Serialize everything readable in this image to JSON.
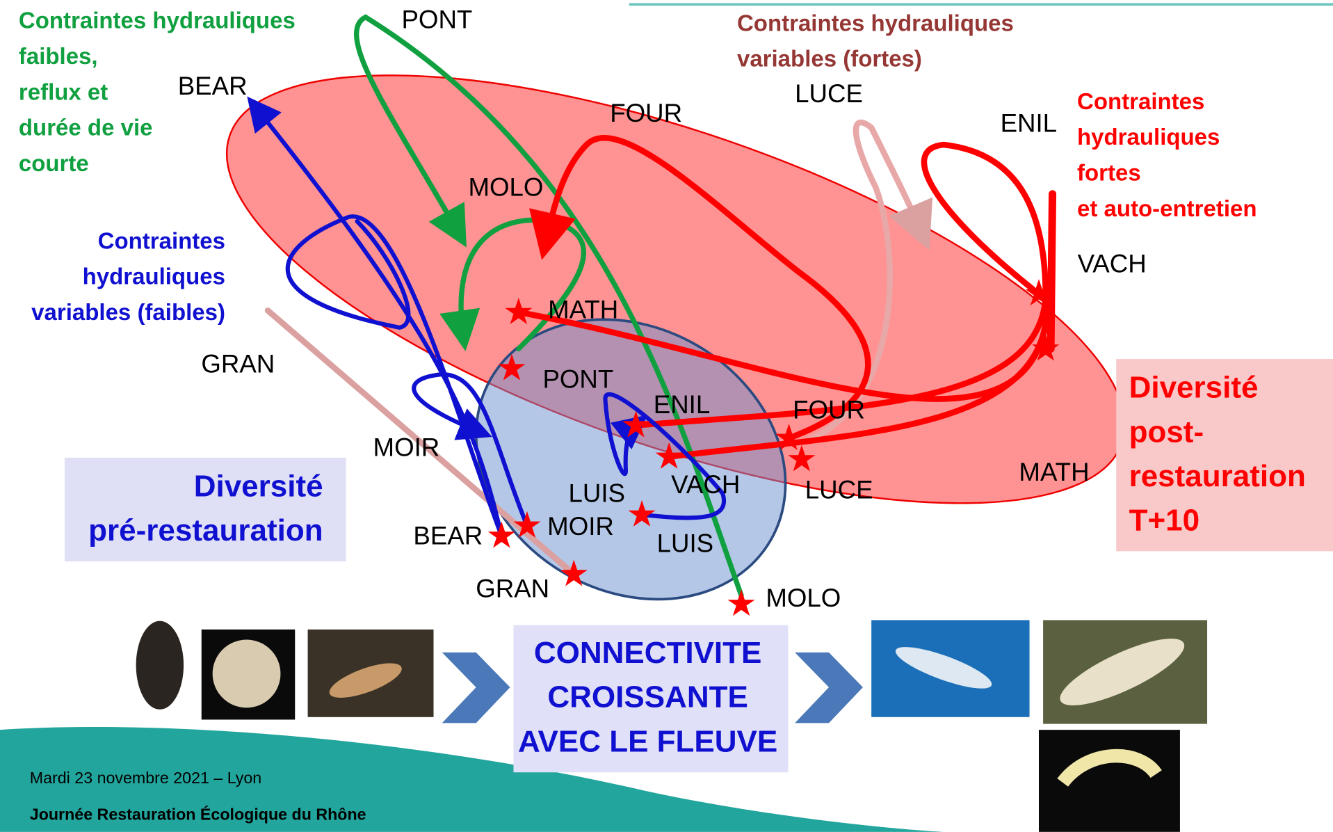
{
  "annotations": {
    "low_constraints": [
      "Contraintes hydrauliques",
      "faibles,",
      "reflux et",
      "durée de vie",
      " courte"
    ],
    "variable_strong": [
      "Contraintes hydrauliques",
      "variables (fortes)"
    ],
    "strong": [
      "Contraintes",
      "hydrauliques",
      "fortes",
      "et auto-entretien"
    ],
    "variable_weak": [
      "Contraintes",
      "hydrauliques",
      "variables (faibles)"
    ]
  },
  "post_labels": [
    "PONT",
    "BEAR",
    "MOLO",
    "FOUR",
    "LUCE",
    "ENIL",
    "VACH",
    "GRAN",
    "MOIR",
    "MATH"
  ],
  "pre_labels": [
    "MATH",
    "PONT",
    "ENIL",
    "FOUR",
    "LUIS",
    "VACH",
    "LUCE",
    "MOIR",
    "BEAR",
    "LUIS",
    "GRAN",
    "MOLO"
  ],
  "boxes": {
    "pre": [
      "Diversité",
      "pré-restauration"
    ],
    "post": [
      "Diversité",
      "post-",
      "restauration",
      "T+10"
    ],
    "connectivity": [
      "CONNECTIVITE",
      "CROISSANTE",
      "AVEC LE FLEUVE"
    ]
  },
  "footer": {
    "date": "Mardi 23 novembre 2021 – Lyon",
    "event": "Journée Restauration Écologique du Rhône"
  }
}
